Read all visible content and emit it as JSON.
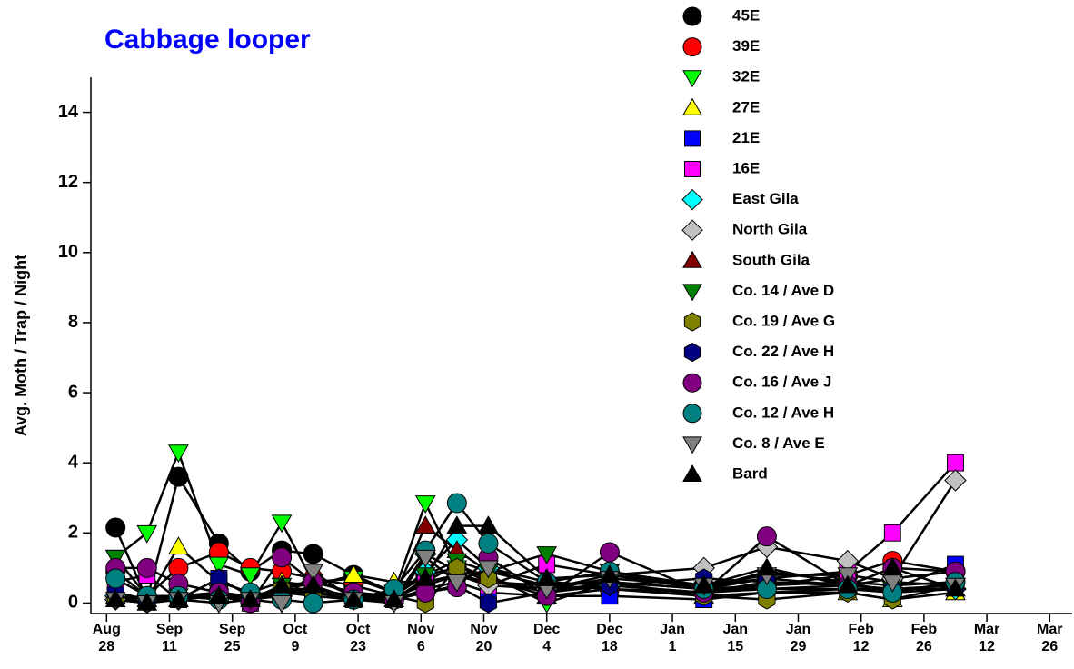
{
  "chart_data": {
    "type": "line",
    "title": "Cabbage looper",
    "y_label": "Avg. Moth / Trap / Night",
    "x": [
      2,
      9,
      16,
      25,
      32,
      39,
      46,
      55,
      64,
      71,
      78,
      85,
      98,
      112,
      133,
      147,
      165,
      175,
      189
    ],
    "xlim": [
      -3.5,
      215
    ],
    "xticks": [
      {
        "value": 0,
        "label": "Aug\n28"
      },
      {
        "value": 14,
        "label": "Sep\n11"
      },
      {
        "value": 28,
        "label": "Sep\n25"
      },
      {
        "value": 42,
        "label": "Oct\n9"
      },
      {
        "value": 56,
        "label": "Oct\n23"
      },
      {
        "value": 70,
        "label": "Nov\n6"
      },
      {
        "value": 84,
        "label": "Nov\n20"
      },
      {
        "value": 98,
        "label": "Dec\n4"
      },
      {
        "value": 112,
        "label": "Dec\n18"
      },
      {
        "value": 126,
        "label": "Jan\n1"
      },
      {
        "value": 140,
        "label": "Jan\n15"
      },
      {
        "value": 154,
        "label": "Jan\n29"
      },
      {
        "value": 168,
        "label": "Feb\n12"
      },
      {
        "value": 182,
        "label": "Feb\n26"
      },
      {
        "value": 196,
        "label": "Mar\n12"
      },
      {
        "value": 210,
        "label": "Mar\n26"
      }
    ],
    "ylim": [
      -0.3,
      15
    ],
    "yticks": [
      0,
      2,
      4,
      6,
      8,
      10,
      12,
      14
    ],
    "legend": "upper right",
    "line_color": "#000000",
    "series": [
      {
        "name": "45E",
        "color": "#000000",
        "marker": "circle",
        "values": [
          2.15,
          0.1,
          3.6,
          1.7,
          0.9,
          1.5,
          1.4,
          0.8,
          0.3,
          0.8,
          1.0,
          0.6,
          0.4,
          0.5,
          0.3,
          0.6,
          0.5,
          0.7,
          0.9
        ]
      },
      {
        "name": "39E",
        "color": "#ff0000",
        "marker": "circle",
        "values": [
          0.9,
          0.2,
          1.0,
          1.45,
          1.0,
          0.9,
          0.7,
          0.5,
          0.2,
          0.5,
          0.8,
          0.6,
          0.5,
          0.4,
          0.3,
          0.5,
          0.8,
          1.2,
          0.9
        ]
      },
      {
        "name": "32E",
        "color": "#00ff00",
        "marker": "triangle-down",
        "values": [
          1.3,
          2.0,
          4.3,
          1.1,
          0.8,
          2.3,
          0.6,
          0.7,
          0.3,
          2.85,
          1.0,
          0.8,
          0.0,
          0.6,
          0.4,
          0.5,
          0.6,
          0.3,
          0.4
        ]
      },
      {
        "name": "27E",
        "color": "#ffff00",
        "marker": "triangle-up",
        "values": [
          0.3,
          0.1,
          1.6,
          0.6,
          0.3,
          0.6,
          0.5,
          0.8,
          0.6,
          0.6,
          1.1,
          0.7,
          0.2,
          0.4,
          0.2,
          0.3,
          0.3,
          0.1,
          0.3
        ]
      },
      {
        "name": "21E",
        "color": "#0000ff",
        "marker": "square",
        "values": [
          0.3,
          0.1,
          0.1,
          0.7,
          0.2,
          0.3,
          0.2,
          0.1,
          0.1,
          0.4,
          0.6,
          0.3,
          0.2,
          0.2,
          0.1,
          0.3,
          0.4,
          0.4,
          1.1
        ]
      },
      {
        "name": "16E",
        "color": "#ff00ff",
        "marker": "square",
        "values": [
          0.6,
          0.8,
          0.1,
          0.2,
          0.0,
          0.4,
          0.4,
          0.2,
          0.1,
          0.6,
          0.8,
          0.5,
          1.1,
          0.8,
          0.4,
          0.7,
          0.9,
          2.0,
          4.0
        ]
      },
      {
        "name": "East Gila",
        "color": "#00ffff",
        "marker": "diamond",
        "values": [
          0.2,
          0.1,
          0.1,
          0.2,
          0.1,
          0.3,
          0.3,
          0.1,
          0.2,
          0.9,
          1.8,
          1.0,
          0.6,
          0.5,
          0.3,
          0.4,
          0.5,
          0.4,
          0.4
        ]
      },
      {
        "name": "North Gila",
        "color": "#c0c0c0",
        "marker": "diamond",
        "values": [
          0.1,
          0.1,
          0.2,
          0.2,
          0.1,
          0.2,
          0.7,
          0.2,
          0.1,
          1.4,
          0.9,
          0.5,
          0.4,
          0.8,
          1.0,
          1.6,
          1.2,
          0.7,
          3.5
        ]
      },
      {
        "name": "South Gila",
        "color": "#800000",
        "marker": "triangle-up",
        "values": [
          0.2,
          0.1,
          0.1,
          0.3,
          0.2,
          0.4,
          0.6,
          0.3,
          0.2,
          2.2,
          1.5,
          0.9,
          0.5,
          0.6,
          0.4,
          0.9,
          0.6,
          0.5,
          0.6
        ]
      },
      {
        "name": "Co. 14 / Ave D",
        "color": "#008000",
        "marker": "triangle-down",
        "values": [
          1.3,
          0.2,
          0.2,
          0.3,
          0.1,
          0.5,
          0.6,
          0.3,
          0.2,
          0.8,
          1.2,
          0.9,
          1.4,
          0.9,
          0.5,
          0.7,
          0.5,
          0.4,
          0.5
        ]
      },
      {
        "name": "Co. 19 / Ave G",
        "color": "#808000",
        "marker": "hexagon",
        "values": [
          0.1,
          0.0,
          0.2,
          0.3,
          0.1,
          0.4,
          0.3,
          0.2,
          0.2,
          0.0,
          1.0,
          0.7,
          0.3,
          0.6,
          0.2,
          0.1,
          0.3,
          0.1,
          0.5
        ]
      },
      {
        "name": "Co. 22 / Ave H",
        "color": "#000080",
        "marker": "hexagon",
        "values": [
          0.3,
          0.1,
          0.1,
          0.7,
          0.2,
          0.2,
          0.5,
          0.1,
          0.1,
          0.3,
          0.5,
          0.0,
          0.3,
          0.5,
          0.7,
          0.6,
          0.5,
          0.4,
          0.5
        ]
      },
      {
        "name": "Co. 16 / Ave J",
        "color": "#800080",
        "marker": "circle",
        "values": [
          1.0,
          1.0,
          0.55,
          0.3,
          0.0,
          1.3,
          0.6,
          0.3,
          0.1,
          0.3,
          0.45,
          1.3,
          0.2,
          1.45,
          0.3,
          1.9,
          0.5,
          1.0,
          0.9
        ]
      },
      {
        "name": "Co. 12 / Ave H",
        "color": "#008080",
        "marker": "circle",
        "values": [
          0.7,
          0.2,
          0.2,
          0.1,
          0.3,
          0.1,
          0.0,
          0.1,
          0.4,
          1.5,
          2.85,
          1.7,
          0.6,
          0.9,
          0.4,
          0.4,
          0.4,
          0.3,
          0.6
        ]
      },
      {
        "name": "Co. 8 / Ave E",
        "color": "#808080",
        "marker": "triangle-down",
        "values": [
          0.1,
          0.0,
          0.1,
          0.0,
          0.1,
          0.0,
          0.9,
          0.1,
          0.0,
          1.3,
          0.6,
          1.0,
          0.4,
          0.7,
          0.5,
          0.8,
          0.8,
          0.6,
          0.5
        ]
      },
      {
        "name": "Bard",
        "color": "#000000",
        "marker": "triangle-up",
        "values": [
          0.1,
          0.0,
          0.1,
          0.2,
          0.1,
          0.5,
          0.5,
          0.1,
          0.1,
          0.7,
          2.2,
          2.2,
          0.7,
          0.8,
          0.5,
          1.0,
          0.5,
          1.0,
          0.4
        ]
      }
    ]
  }
}
